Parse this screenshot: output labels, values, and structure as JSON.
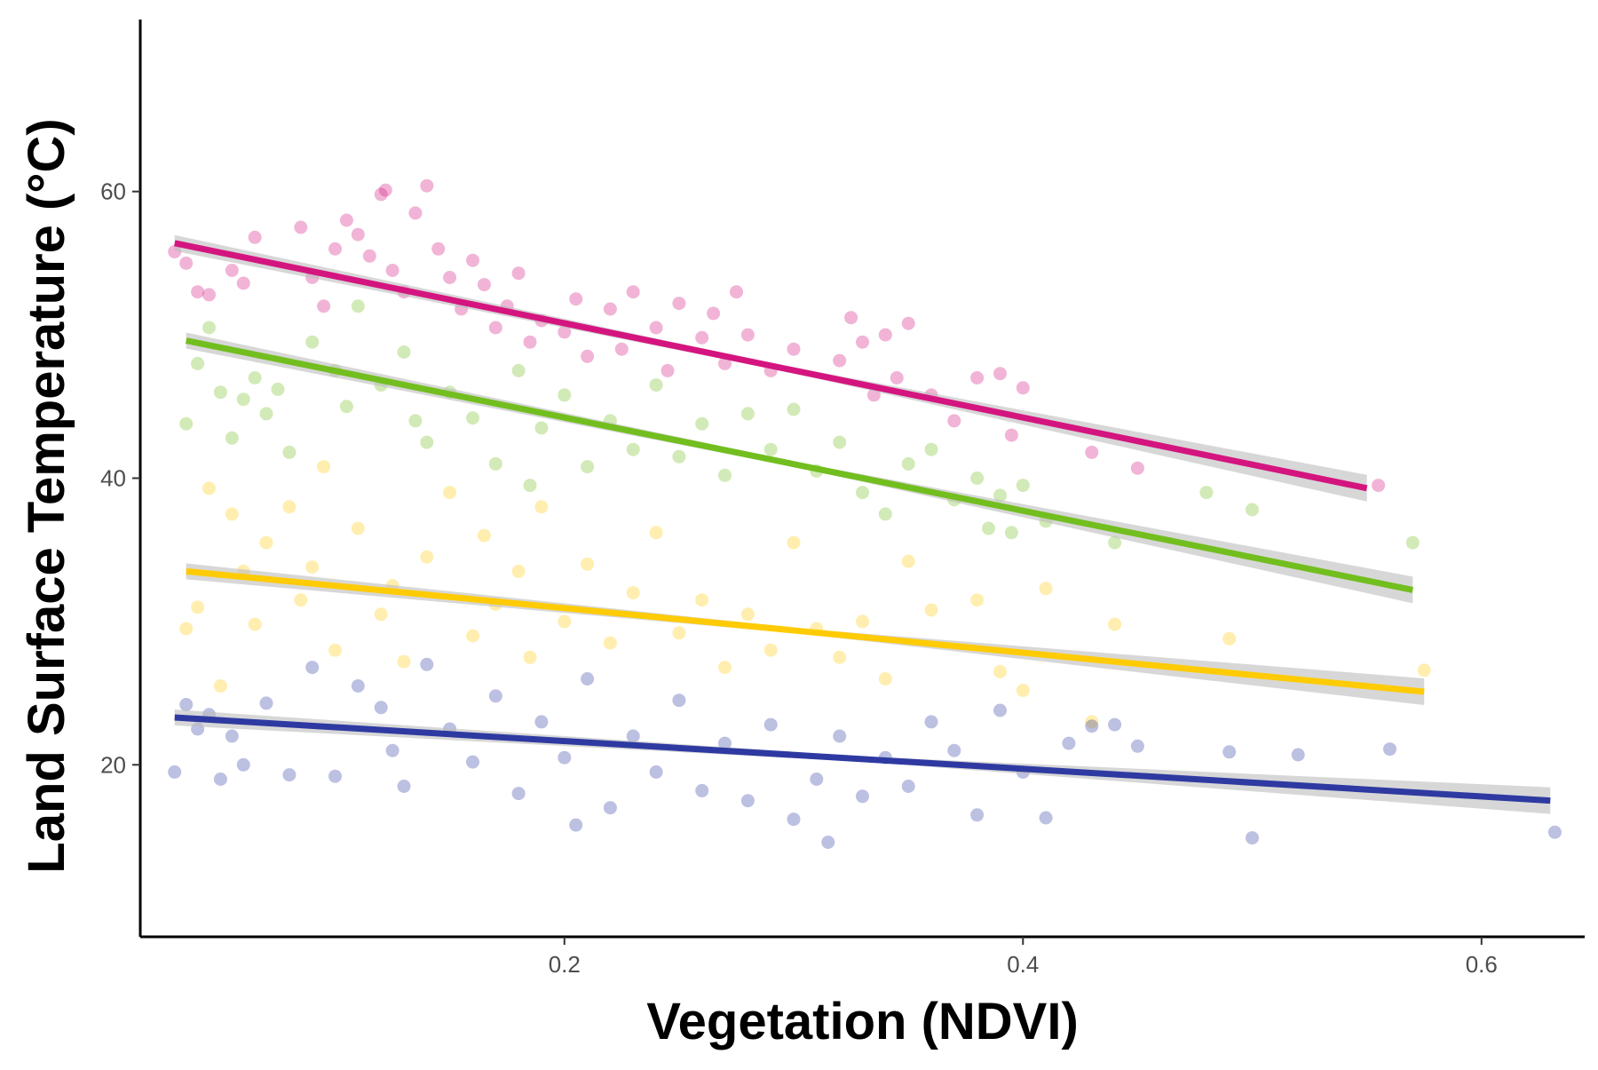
{
  "chart_data": {
    "type": "scatter",
    "title": "",
    "xlabel": "Vegetation (NDVI)",
    "ylabel": "Land Surface Temperature (°C)",
    "xlim": [
      0.015,
      0.645
    ],
    "ylim": [
      8,
      72
    ],
    "xticks": [
      {
        "value": 0.2,
        "label": "0.2"
      },
      {
        "value": 0.4,
        "label": "0.4"
      },
      {
        "value": 0.6,
        "label": "0.6"
      }
    ],
    "yticks": [
      {
        "value": 20,
        "label": "20"
      },
      {
        "value": 40,
        "label": "40"
      },
      {
        "value": 60,
        "label": "60"
      }
    ],
    "grid": false,
    "legend": "none",
    "series": [
      {
        "color": "#d4157f",
        "points": [
          [
            0.03,
            55.8
          ],
          [
            0.035,
            55.0
          ],
          [
            0.04,
            53.0
          ],
          [
            0.045,
            52.8
          ],
          [
            0.055,
            54.5
          ],
          [
            0.06,
            53.6
          ],
          [
            0.065,
            56.8
          ],
          [
            0.085,
            57.5
          ],
          [
            0.09,
            54.0
          ],
          [
            0.095,
            52.0
          ],
          [
            0.1,
            56.0
          ],
          [
            0.105,
            58.0
          ],
          [
            0.11,
            57.0
          ],
          [
            0.115,
            55.5
          ],
          [
            0.12,
            59.8
          ],
          [
            0.122,
            60.1
          ],
          [
            0.125,
            54.5
          ],
          [
            0.13,
            53.0
          ],
          [
            0.135,
            58.5
          ],
          [
            0.14,
            60.4
          ],
          [
            0.145,
            56.0
          ],
          [
            0.15,
            54.0
          ],
          [
            0.155,
            51.8
          ],
          [
            0.16,
            55.2
          ],
          [
            0.165,
            53.5
          ],
          [
            0.17,
            50.5
          ],
          [
            0.175,
            52.0
          ],
          [
            0.18,
            54.3
          ],
          [
            0.185,
            49.5
          ],
          [
            0.19,
            51.0
          ],
          [
            0.2,
            50.2
          ],
          [
            0.205,
            52.5
          ],
          [
            0.21,
            48.5
          ],
          [
            0.22,
            51.8
          ],
          [
            0.225,
            49.0
          ],
          [
            0.23,
            53.0
          ],
          [
            0.24,
            50.5
          ],
          [
            0.245,
            47.5
          ],
          [
            0.25,
            52.2
          ],
          [
            0.26,
            49.8
          ],
          [
            0.265,
            51.5
          ],
          [
            0.27,
            48.0
          ],
          [
            0.275,
            53.0
          ],
          [
            0.28,
            50.0
          ],
          [
            0.29,
            47.5
          ],
          [
            0.3,
            49.0
          ],
          [
            0.32,
            48.2
          ],
          [
            0.325,
            51.2
          ],
          [
            0.33,
            49.5
          ],
          [
            0.335,
            45.8
          ],
          [
            0.34,
            50.0
          ],
          [
            0.345,
            47.0
          ],
          [
            0.35,
            50.8
          ],
          [
            0.36,
            45.8
          ],
          [
            0.37,
            44.0
          ],
          [
            0.38,
            47.0
          ],
          [
            0.39,
            47.3
          ],
          [
            0.395,
            43.0
          ],
          [
            0.4,
            46.3
          ],
          [
            0.43,
            41.8
          ],
          [
            0.45,
            40.7
          ],
          [
            0.555,
            39.5
          ]
        ],
        "trend": {
          "x": [
            0.03,
            0.55
          ],
          "y": [
            56.4,
            39.3
          ]
        }
      },
      {
        "color": "#72be1f",
        "points": [
          [
            0.035,
            43.8
          ],
          [
            0.04,
            48.0
          ],
          [
            0.045,
            50.5
          ],
          [
            0.05,
            46.0
          ],
          [
            0.055,
            42.8
          ],
          [
            0.06,
            45.5
          ],
          [
            0.065,
            47.0
          ],
          [
            0.07,
            44.5
          ],
          [
            0.075,
            46.2
          ],
          [
            0.08,
            41.8
          ],
          [
            0.09,
            49.5
          ],
          [
            0.1,
            47.5
          ],
          [
            0.105,
            45.0
          ],
          [
            0.11,
            52.0
          ],
          [
            0.12,
            46.5
          ],
          [
            0.13,
            48.8
          ],
          [
            0.135,
            44.0
          ],
          [
            0.14,
            42.5
          ],
          [
            0.15,
            46.0
          ],
          [
            0.16,
            44.2
          ],
          [
            0.17,
            41.0
          ],
          [
            0.18,
            47.5
          ],
          [
            0.185,
            39.5
          ],
          [
            0.19,
            43.5
          ],
          [
            0.2,
            45.8
          ],
          [
            0.21,
            40.8
          ],
          [
            0.22,
            44.0
          ],
          [
            0.23,
            42.0
          ],
          [
            0.24,
            46.5
          ],
          [
            0.25,
            41.5
          ],
          [
            0.26,
            43.8
          ],
          [
            0.27,
            40.2
          ],
          [
            0.28,
            44.5
          ],
          [
            0.29,
            42.0
          ],
          [
            0.3,
            44.8
          ],
          [
            0.31,
            40.5
          ],
          [
            0.32,
            42.5
          ],
          [
            0.33,
            39.0
          ],
          [
            0.34,
            37.5
          ],
          [
            0.35,
            41.0
          ],
          [
            0.36,
            42.0
          ],
          [
            0.37,
            38.5
          ],
          [
            0.38,
            40.0
          ],
          [
            0.385,
            36.5
          ],
          [
            0.39,
            38.8
          ],
          [
            0.395,
            36.2
          ],
          [
            0.4,
            39.5
          ],
          [
            0.41,
            37.0
          ],
          [
            0.44,
            35.5
          ],
          [
            0.48,
            39.0
          ],
          [
            0.5,
            37.8
          ],
          [
            0.57,
            35.5
          ]
        ],
        "trend": {
          "x": [
            0.035,
            0.57
          ],
          "y": [
            49.6,
            32.2
          ]
        }
      },
      {
        "color": "#ffcb05",
        "points": [
          [
            0.035,
            29.5
          ],
          [
            0.04,
            31.0
          ],
          [
            0.045,
            39.3
          ],
          [
            0.05,
            25.5
          ],
          [
            0.055,
            37.5
          ],
          [
            0.06,
            33.5
          ],
          [
            0.065,
            29.8
          ],
          [
            0.07,
            35.5
          ],
          [
            0.08,
            38.0
          ],
          [
            0.085,
            31.5
          ],
          [
            0.09,
            33.8
          ],
          [
            0.095,
            40.8
          ],
          [
            0.1,
            28.0
          ],
          [
            0.11,
            36.5
          ],
          [
            0.12,
            30.5
          ],
          [
            0.125,
            32.5
          ],
          [
            0.13,
            27.2
          ],
          [
            0.14,
            34.5
          ],
          [
            0.15,
            39.0
          ],
          [
            0.16,
            29.0
          ],
          [
            0.165,
            36.0
          ],
          [
            0.17,
            31.2
          ],
          [
            0.18,
            33.5
          ],
          [
            0.185,
            27.5
          ],
          [
            0.19,
            38.0
          ],
          [
            0.2,
            30.0
          ],
          [
            0.21,
            34.0
          ],
          [
            0.22,
            28.5
          ],
          [
            0.23,
            32.0
          ],
          [
            0.24,
            36.2
          ],
          [
            0.25,
            29.2
          ],
          [
            0.26,
            31.5
          ],
          [
            0.27,
            26.8
          ],
          [
            0.28,
            30.5
          ],
          [
            0.29,
            28.0
          ],
          [
            0.3,
            35.5
          ],
          [
            0.31,
            29.5
          ],
          [
            0.32,
            27.5
          ],
          [
            0.33,
            30.0
          ],
          [
            0.34,
            26.0
          ],
          [
            0.35,
            34.2
          ],
          [
            0.36,
            30.8
          ],
          [
            0.38,
            31.5
          ],
          [
            0.39,
            26.5
          ],
          [
            0.4,
            25.2
          ],
          [
            0.41,
            32.3
          ],
          [
            0.43,
            23.0
          ],
          [
            0.44,
            29.8
          ],
          [
            0.49,
            28.8
          ],
          [
            0.575,
            26.6
          ]
        ],
        "trend": {
          "x": [
            0.035,
            0.575
          ],
          "y": [
            33.5,
            25.1
          ]
        }
      },
      {
        "color": "#2e3aa1",
        "points": [
          [
            0.03,
            19.5
          ],
          [
            0.035,
            24.2
          ],
          [
            0.04,
            22.5
          ],
          [
            0.045,
            23.5
          ],
          [
            0.05,
            19.0
          ],
          [
            0.055,
            22.0
          ],
          [
            0.06,
            20.0
          ],
          [
            0.07,
            24.3
          ],
          [
            0.08,
            19.3
          ],
          [
            0.09,
            26.8
          ],
          [
            0.1,
            19.2
          ],
          [
            0.11,
            25.5
          ],
          [
            0.12,
            24.0
          ],
          [
            0.125,
            21.0
          ],
          [
            0.13,
            18.5
          ],
          [
            0.14,
            27.0
          ],
          [
            0.15,
            22.5
          ],
          [
            0.16,
            20.2
          ],
          [
            0.17,
            24.8
          ],
          [
            0.18,
            18.0
          ],
          [
            0.19,
            23.0
          ],
          [
            0.2,
            20.5
          ],
          [
            0.205,
            15.8
          ],
          [
            0.21,
            26.0
          ],
          [
            0.22,
            17.0
          ],
          [
            0.23,
            22.0
          ],
          [
            0.24,
            19.5
          ],
          [
            0.25,
            24.5
          ],
          [
            0.26,
            18.2
          ],
          [
            0.27,
            21.5
          ],
          [
            0.28,
            17.5
          ],
          [
            0.29,
            22.8
          ],
          [
            0.3,
            16.2
          ],
          [
            0.31,
            19.0
          ],
          [
            0.315,
            14.6
          ],
          [
            0.32,
            22.0
          ],
          [
            0.33,
            17.8
          ],
          [
            0.34,
            20.5
          ],
          [
            0.35,
            18.5
          ],
          [
            0.36,
            23.0
          ],
          [
            0.37,
            21.0
          ],
          [
            0.38,
            16.5
          ],
          [
            0.39,
            23.8
          ],
          [
            0.4,
            19.5
          ],
          [
            0.41,
            16.3
          ],
          [
            0.42,
            21.5
          ],
          [
            0.43,
            22.7
          ],
          [
            0.44,
            22.8
          ],
          [
            0.45,
            21.3
          ],
          [
            0.49,
            20.9
          ],
          [
            0.5,
            14.9
          ],
          [
            0.52,
            20.7
          ],
          [
            0.56,
            21.1
          ],
          [
            0.632,
            15.3
          ]
        ],
        "trend": {
          "x": [
            0.03,
            0.63
          ],
          "y": [
            23.3,
            17.5
          ]
        }
      }
    ]
  }
}
